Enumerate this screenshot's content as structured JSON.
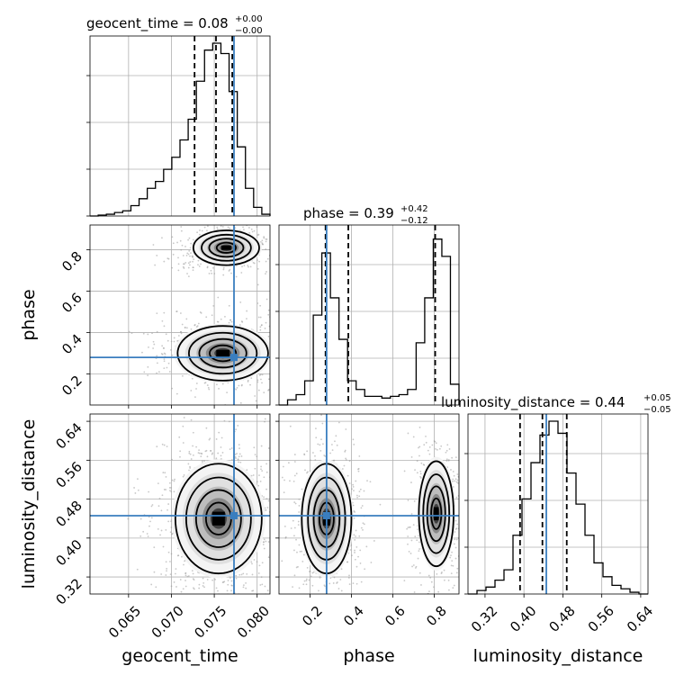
{
  "chart_data": {
    "type": "corner",
    "parameters": [
      {
        "name": "geocent_time",
        "label": "geocent_time",
        "title_prefix": "geocent_time = 0.08",
        "title_plus": "+0.00",
        "title_minus": "−0.00",
        "range": [
          0.0605,
          0.0815
        ],
        "ticks": [
          0.065,
          0.07,
          0.075,
          0.08
        ],
        "tick_labels": [
          "0.065",
          "0.070",
          "0.075",
          "0.080"
        ],
        "quantiles": [
          0.0727,
          0.0752,
          0.0771
        ],
        "truth": 0.0773,
        "hist": [
          0.0,
          0.005,
          0.01,
          0.02,
          0.03,
          0.06,
          0.1,
          0.16,
          0.2,
          0.27,
          0.34,
          0.44,
          0.56,
          0.78,
          0.96,
          1.0,
          0.94,
          0.72,
          0.4,
          0.16,
          0.05,
          0.01
        ]
      },
      {
        "name": "phase",
        "label": "phase",
        "title_prefix": "phase = 0.39",
        "title_plus": "+0.42",
        "title_minus": "−0.12",
        "range": [
          0.05,
          0.92
        ],
        "ticks": [
          0.2,
          0.4,
          0.6,
          0.8
        ],
        "tick_labels": [
          "0.2",
          "0.4",
          "0.6",
          "0.8"
        ],
        "quantiles": [
          0.275,
          0.385,
          0.805
        ],
        "truth": 0.28,
        "hist": [
          0.0,
          0.03,
          0.06,
          0.14,
          0.52,
          0.88,
          0.62,
          0.38,
          0.14,
          0.09,
          0.05,
          0.05,
          0.04,
          0.05,
          0.06,
          0.09,
          0.36,
          0.62,
          0.96,
          0.86,
          0.12
        ]
      },
      {
        "name": "luminosity_distance",
        "label": "luminosity_distance",
        "title_prefix": "luminosity_distance = 0.44",
        "title_plus": "+0.05",
        "title_minus": "−0.05",
        "range": [
          0.285,
          0.655
        ],
        "ticks": [
          0.32,
          0.4,
          0.48,
          0.56,
          0.64
        ],
        "tick_labels": [
          "0.32",
          "0.40",
          "0.48",
          "0.56",
          "0.64"
        ],
        "quantiles": [
          0.392,
          0.438,
          0.488
        ],
        "truth": 0.446,
        "hist": [
          0.0,
          0.02,
          0.04,
          0.08,
          0.14,
          0.34,
          0.55,
          0.76,
          0.92,
          1.0,
          0.93,
          0.7,
          0.52,
          0.34,
          0.18,
          0.1,
          0.05,
          0.03,
          0.01,
          0.0
        ]
      }
    ],
    "truth_color": "#3a7ebf",
    "contour_color": "#000000",
    "grid": true,
    "pairs": [
      {
        "x": "geocent_time",
        "y": "phase",
        "modes": [
          {
            "cx": 0.0764,
            "cy": 0.81,
            "sx": 0.0016,
            "sy": 0.035,
            "w": 0.45
          },
          {
            "cx": 0.076,
            "cy": 0.3,
            "sx": 0.0022,
            "sy": 0.055,
            "w": 0.55
          }
        ]
      },
      {
        "x": "geocent_time",
        "y": "luminosity_distance",
        "modes": [
          {
            "cx": 0.0755,
            "cy": 0.44,
            "sx": 0.0021,
            "sy": 0.047,
            "w": 1.0
          }
        ]
      },
      {
        "x": "phase",
        "y": "luminosity_distance",
        "modes": [
          {
            "cx": 0.28,
            "cy": 0.44,
            "sx": 0.05,
            "sy": 0.047,
            "w": 0.55
          },
          {
            "cx": 0.81,
            "cy": 0.45,
            "sx": 0.035,
            "sy": 0.045,
            "w": 0.45
          }
        ]
      }
    ]
  }
}
